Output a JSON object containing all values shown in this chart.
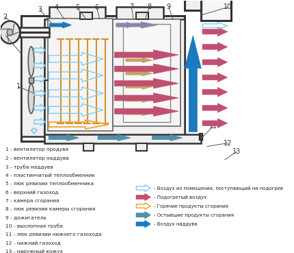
{
  "bg_color": "#ffffff",
  "box_color": "#333333",
  "c_cold": "#7ecef4",
  "c_warm": "#c05070",
  "c_hot": "#f0a020",
  "c_cool": "#5090a8",
  "c_boost": "#1a7bbf",
  "labels_left": [
    "1 - вентилятор продува",
    "2 - вентилятор наддува",
    "3 - труба наддува",
    "4 - пластинчатый теплообменник",
    "5 - люк ревизии теплообменника",
    "6 - верхний газоход",
    "7 - камера сгорания",
    "8 - люк ревизии камеры сгорания",
    "9 - дожигатель",
    "10 - выхлопная труба",
    "11 - люк ревизии нижнего газохода",
    "12 - нижний газоход",
    "13 - наружный кожух"
  ],
  "leg_labels": [
    "- Воздух из помещения, поступающий на подогрев",
    "- Подогретый воздух",
    "- Горячие продукты сгорания",
    "- Остывшие продукты сгорания",
    "- Воздух наддува"
  ]
}
